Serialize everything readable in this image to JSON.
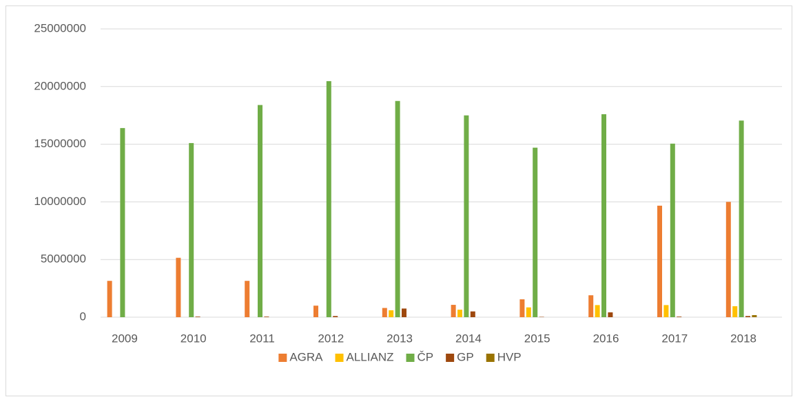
{
  "chart_data": {
    "type": "bar",
    "categories": [
      "2009",
      "2010",
      "2011",
      "2012",
      "2013",
      "2014",
      "2015",
      "2016",
      "2017",
      "2018"
    ],
    "series": [
      {
        "name": "AGRA",
        "color": "#ed7d31",
        "values": [
          3150000,
          5150000,
          3150000,
          1000000,
          800000,
          1070000,
          1550000,
          1900000,
          9670000,
          10000000
        ]
      },
      {
        "name": "ALLIANZ",
        "color": "#ffc000",
        "values": [
          0,
          0,
          0,
          0,
          600000,
          650000,
          850000,
          1050000,
          1050000,
          950000
        ]
      },
      {
        "name": "ČP",
        "color": "#70ad47",
        "values": [
          16400000,
          15100000,
          18400000,
          20470000,
          18750000,
          17500000,
          14700000,
          17600000,
          15050000,
          17050000
        ]
      },
      {
        "name": "GP",
        "color": "#9e480e",
        "values": [
          0,
          50000,
          50000,
          100000,
          750000,
          500000,
          30000,
          420000,
          50000,
          100000
        ]
      },
      {
        "name": "HVP",
        "color": "#997300",
        "values": [
          0,
          0,
          0,
          0,
          0,
          0,
          0,
          0,
          0,
          180000
        ]
      }
    ],
    "ylim": [
      0,
      25000000
    ],
    "yticks": [
      0,
      5000000,
      10000000,
      15000000,
      20000000,
      25000000
    ],
    "grid": true,
    "legend": "bottom"
  }
}
